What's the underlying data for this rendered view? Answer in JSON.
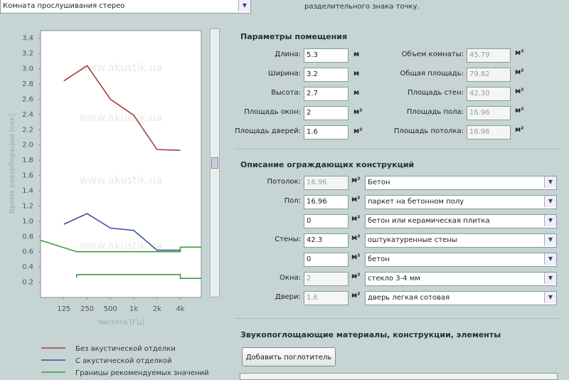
{
  "room_select": "Комната прослушивания стерео",
  "hint": "разделительного знака точку.",
  "room_params": {
    "title": "Параметры помещения",
    "fields": [
      {
        "label": "Длина:",
        "value": "5.3",
        "unit": "м"
      },
      {
        "label": "Ширина:",
        "value": "3.2",
        "unit": "м"
      },
      {
        "label": "Высота:",
        "value": "2.7",
        "unit": "м"
      },
      {
        "label": "Площадь окон:",
        "value": "2",
        "unit": "м²"
      },
      {
        "label": "Площадь дверей:",
        "value": "1.6",
        "unit": "м²"
      }
    ],
    "computed": [
      {
        "label": "Объем комнаты:",
        "value": "45.79",
        "unit": "м³"
      },
      {
        "label": "Общая площадь:",
        "value": "79.82",
        "unit": "м²"
      },
      {
        "label": "Площадь стен:",
        "value": "42.30",
        "unit": "м²"
      },
      {
        "label": "Площадь пола:",
        "value": "16.96",
        "unit": "м²"
      },
      {
        "label": "Площадь потолка:",
        "value": "16.96",
        "unit": "м²"
      }
    ]
  },
  "constructions": {
    "title": "Описание ограждающих конструкций",
    "rows": [
      {
        "label": "Потолок:",
        "value": "16.96",
        "unit": "м²",
        "material": "Бетон",
        "disabled": true
      },
      {
        "label": "Пол:",
        "value": "16.96",
        "unit": "м²",
        "material": "паркет на бетонном полу",
        "disabled": false
      },
      {
        "value": "0",
        "unit": "м²",
        "material": "бетон или керамическая плитка",
        "disabled": false
      },
      {
        "label": "Стены:",
        "value": "42.3",
        "unit": "м²",
        "material": "оштукатуренные стены",
        "disabled": false
      },
      {
        "value": "0",
        "unit": "м²",
        "material": "бетон",
        "disabled": false
      },
      {
        "label": "Окна:",
        "value": "2",
        "unit": "м²",
        "material": "стекло 3-4 мм",
        "disabled": true
      },
      {
        "label": "Двери:",
        "value": "1.6",
        "unit": "м²",
        "material": "дверь легкая сотовая",
        "disabled": true
      }
    ]
  },
  "absorbers": {
    "title": "Звукопоглощающие материалы, конструкции, элементы",
    "button": "Добавить поглотитель"
  },
  "chart_data": {
    "type": "line",
    "xlabel": "Частота [Гц]",
    "ylabel": "Время реверберации [сек]",
    "watermark": "www.akustik.ua",
    "xlim": [
      0,
      6.9
    ],
    "xticks": [
      {
        "value": 1,
        "label": "125"
      },
      {
        "value": 2,
        "label": "250"
      },
      {
        "value": 3,
        "label": "500"
      },
      {
        "value": 4,
        "label": "1k"
      },
      {
        "value": 5,
        "label": "2k"
      },
      {
        "value": 6,
        "label": "4k"
      }
    ],
    "ylim": [
      0,
      3.5
    ],
    "yticks": [
      0.2,
      0.4,
      0.6,
      0.8,
      {
        "value": 1,
        "label": "1.0"
      },
      1.2,
      1.4,
      1.6,
      1.8,
      {
        "value": 2,
        "label": "2.0"
      },
      2.2,
      2.4,
      2.6,
      2.8,
      {
        "value": 3,
        "label": "3.0"
      },
      3.2,
      3.4
    ],
    "series": [
      {
        "name": "Без акустической отделки",
        "color": "#a23c3c",
        "x": [
          1,
          2,
          3,
          4,
          5,
          6
        ],
        "values": [
          2.84,
          3.04,
          2.6,
          2.39,
          1.94,
          1.93
        ]
      },
      {
        "name": "С акустической отделкой",
        "color": "#3d4f9e",
        "x": [
          1,
          2,
          3,
          4,
          5,
          6
        ],
        "values": [
          0.96,
          1.1,
          0.91,
          0.88,
          0.62,
          0.62
        ]
      },
      {
        "name": "Границы рекомендуемых значений",
        "color": "#3a9e3a",
        "x": [
          0,
          1.55,
          6,
          6,
          6.9,
          null,
          1.55,
          1.55,
          6,
          6,
          6.9
        ],
        "values": [
          0.75,
          0.6,
          0.6,
          0.66,
          0.66,
          null,
          0.26,
          0.3,
          0.3,
          0.25,
          0.25
        ]
      }
    ]
  }
}
